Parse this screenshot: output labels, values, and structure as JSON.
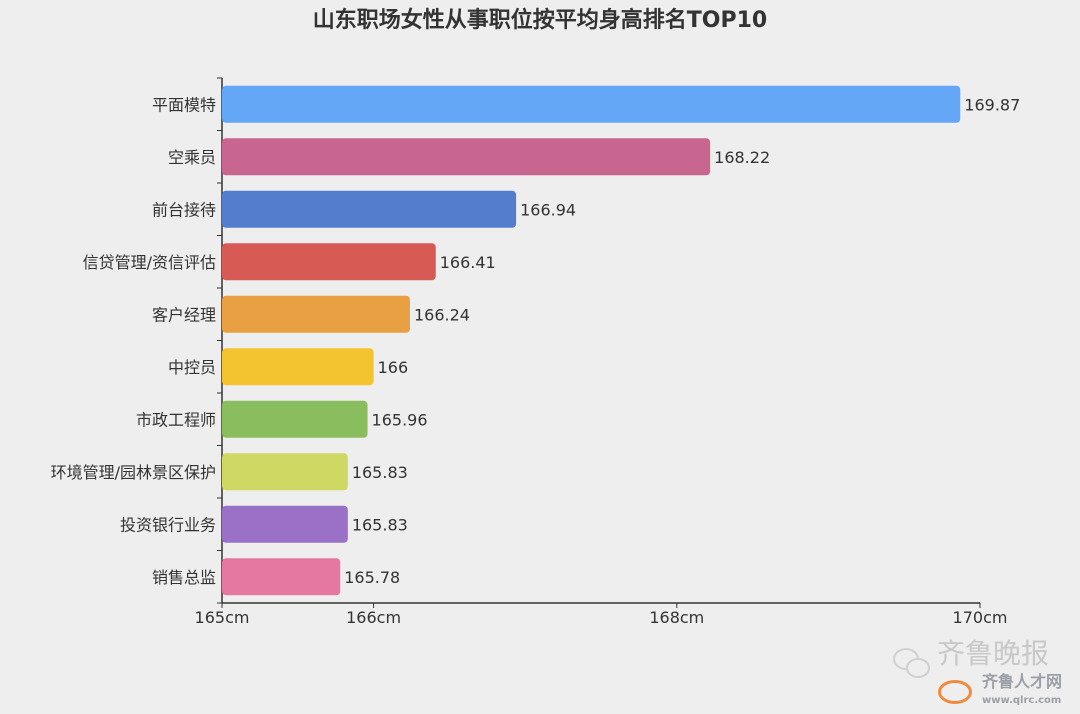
{
  "chart_data": {
    "type": "bar",
    "orientation": "horizontal",
    "title": "山东职场女性从事职位按平均身高排名TOP10",
    "categories": [
      "平面模特",
      "空乘员",
      "前台接待",
      "信贷管理/资信评估",
      "客户经理",
      "中控员",
      "市政工程师",
      "环境管理/园林景区保护",
      "投资银行业务",
      "销售总监"
    ],
    "values": [
      169.87,
      168.22,
      166.94,
      166.41,
      166.24,
      166,
      165.96,
      165.83,
      165.83,
      165.78
    ],
    "value_labels": [
      "169.87",
      "168.22",
      "166.94",
      "166.41",
      "166.24",
      "166",
      "165.96",
      "165.83",
      "165.83",
      "165.78"
    ],
    "colors": [
      "#64a7f7",
      "#c9668f",
      "#547ecd",
      "#d75a55",
      "#e9a043",
      "#f3c330",
      "#8abd5d",
      "#cfd862",
      "#9a71c7",
      "#e478a0"
    ],
    "xlim": [
      165,
      170
    ],
    "xticks": [
      165,
      166,
      168,
      170
    ],
    "xtick_labels": [
      "165cm",
      "166cm",
      "168cm",
      "170cm"
    ],
    "grid": false
  },
  "watermark": {
    "brand": "齐鲁晚报",
    "logo_text": "齐鲁人才网",
    "url": "www.qlrc.com"
  }
}
